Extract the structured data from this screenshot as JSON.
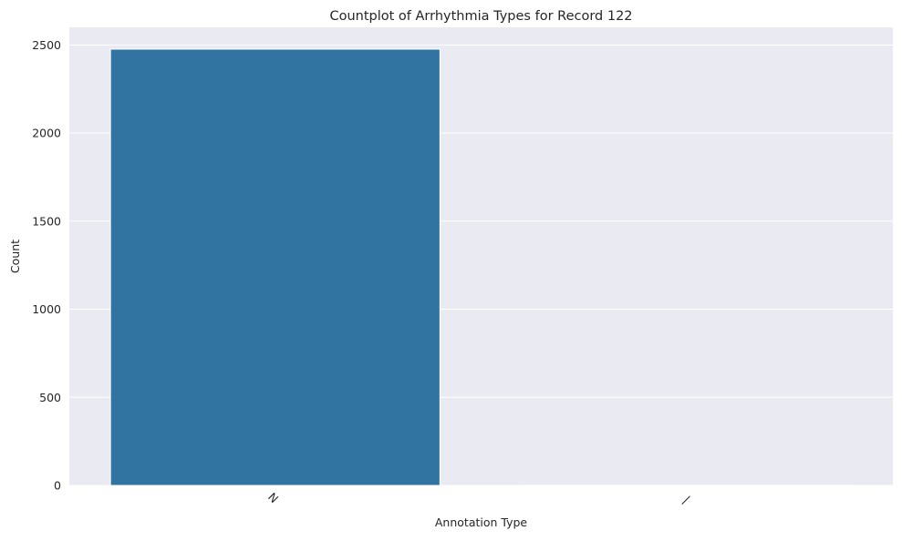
{
  "chart_data": {
    "type": "bar",
    "title": "Countplot of Arrhythmia Types for Record 122",
    "xlabel": "Annotation Type",
    "ylabel": "Count",
    "categories": [
      "N",
      "|"
    ],
    "values": [
      2476,
      1
    ],
    "ylim": [
      0,
      2600
    ],
    "yticks": [
      0,
      500,
      1000,
      1500,
      2000,
      2500
    ],
    "grid": true,
    "bar_color": "#3274a1",
    "background_color": "#eaeaf2",
    "grid_color": "#ffffff",
    "xtick_rotation_degrees": 45
  }
}
